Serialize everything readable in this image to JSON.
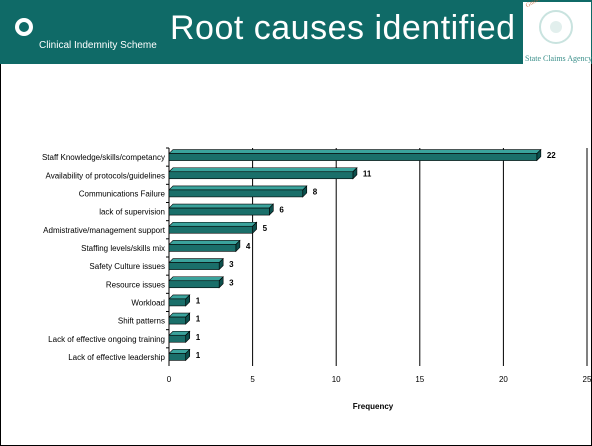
{
  "header": {
    "title": "Root causes identified",
    "logo_text": "Clinical Indemnity Scheme",
    "emblem_caption": "State Claims Agency",
    "emblem_arc_text": "Gníomhaireacht Éileamh",
    "colors": {
      "brand": "#0f6a67",
      "bar": "#1a6f6a",
      "bar_top": "#3aa39c"
    }
  },
  "chart_data": {
    "type": "bar",
    "orientation": "horizontal",
    "title": "",
    "xlabel": "Frequency",
    "ylabel": "",
    "categories": [
      "Staff Knowledge/skills/competancy",
      "Availability of protocols/guidelines",
      "Communications Failure",
      "lack of supervision",
      "Admistrative/management support",
      "Staffing levels/skills mix",
      "Safety Culture issues",
      "Resource issues",
      "Workload",
      "Shift patterns",
      "Lack of effective ongoing training",
      "Lack of effective leadership"
    ],
    "values": [
      22,
      11,
      8,
      6,
      5,
      4,
      3,
      3,
      1,
      1,
      1,
      1
    ],
    "xlim": [
      0,
      25
    ],
    "xticks": [
      "0",
      "5",
      "10",
      "15",
      "20",
      "25"
    ],
    "grid": "vertical",
    "legend": "none"
  }
}
